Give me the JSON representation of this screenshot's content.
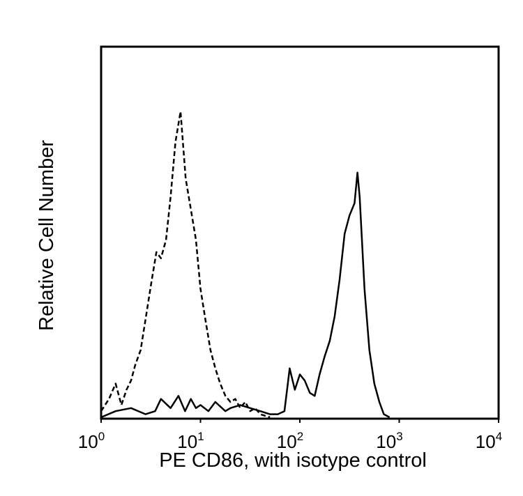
{
  "chart_data": {
    "type": "line",
    "title": "",
    "xlabel": "PE CD86, with isotype control",
    "ylabel": "Relative Cell Number",
    "x_scale": "log",
    "xlim": [
      1,
      10000
    ],
    "ylim": [
      0,
      100
    ],
    "x_ticks": [
      {
        "value": 1,
        "base": "10",
        "exp": "0"
      },
      {
        "value": 10,
        "base": "10",
        "exp": "1"
      },
      {
        "value": 100,
        "base": "10",
        "exp": "2"
      },
      {
        "value": 1000,
        "base": "10",
        "exp": "3"
      },
      {
        "value": 10000,
        "base": "10",
        "exp": "4"
      }
    ],
    "grid": false,
    "legend": "none",
    "series": [
      {
        "style": "dashed",
        "color": "#000000",
        "x": [
          1.0,
          1.2,
          1.4,
          1.6,
          1.8,
          2.0,
          2.2,
          2.5,
          2.8,
          3.2,
          3.6,
          4.0,
          4.5,
          5.0,
          5.6,
          6.3,
          7.1,
          8.0,
          9.0,
          10.0,
          11.2,
          12.6,
          14.1,
          15.8,
          17.8,
          20.0,
          22.4,
          25.1,
          28.2,
          31.6,
          35.5,
          40.0,
          50.0
        ],
        "y": [
          2,
          6,
          11,
          4,
          9,
          12,
          17,
          22,
          32,
          44,
          54,
          52,
          58,
          72,
          90,
          100,
          78,
          68,
          58,
          42,
          32,
          22,
          16,
          11,
          7,
          5,
          6,
          3,
          5,
          2,
          3,
          1,
          0
        ]
      },
      {
        "style": "solid",
        "color": "#000000",
        "x": [
          1.0,
          1.4,
          2.0,
          2.8,
          3.5,
          4.0,
          5.0,
          6.0,
          7.0,
          8.0,
          9.0,
          10.0,
          12.0,
          14.1,
          17.8,
          20.0,
          25.1,
          31.6,
          40.0,
          50.0,
          60.0,
          70.0,
          79.0,
          89.0,
          100.0,
          112.0,
          126.0,
          141.0,
          158.0,
          178.0,
          200.0,
          224.0,
          251.0,
          282.0,
          316.0,
          355.0,
          380.0,
          400.0,
          447.0,
          501.0,
          562.0,
          631.0,
          700.0,
          800.0
        ],
        "y": [
          0,
          2,
          3,
          1,
          2,
          6,
          3,
          7,
          2,
          6,
          3,
          4,
          2,
          5,
          2,
          3,
          4,
          3,
          2,
          1,
          1,
          2,
          16,
          9,
          14,
          12,
          8,
          7,
          14,
          20,
          25,
          33,
          45,
          60,
          66,
          70,
          80,
          72,
          42,
          22,
          11,
          5,
          1,
          0
        ]
      }
    ]
  }
}
